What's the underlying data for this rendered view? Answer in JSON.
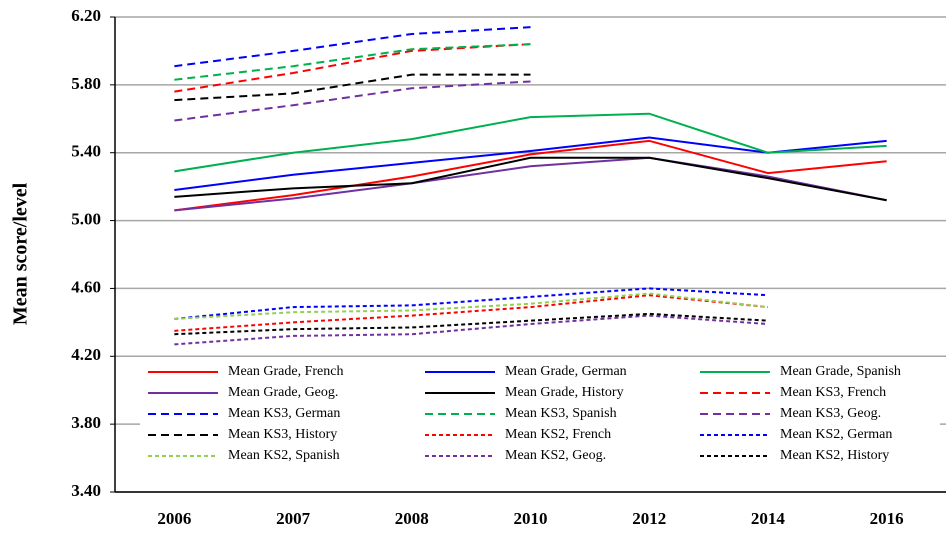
{
  "chart_data": {
    "type": "line",
    "y_label": "Mean score/level",
    "categories": [
      "2006",
      "2007",
      "2008",
      "2010",
      "2012",
      "2014",
      "2016"
    ],
    "ylim": [
      3.4,
      6.2
    ],
    "yticks": [
      {
        "value": 3.4,
        "label": "3.40"
      },
      {
        "value": 3.8,
        "label": "3.80"
      },
      {
        "value": 4.2,
        "label": "4.20"
      },
      {
        "value": 4.6,
        "label": "4.60"
      },
      {
        "value": 5.0,
        "label": "5.00"
      },
      {
        "value": 5.4,
        "label": "5.40"
      },
      {
        "value": 5.8,
        "label": "5.80"
      },
      {
        "value": 6.2,
        "label": "6.20"
      }
    ],
    "grid": true,
    "series": [
      {
        "name": "Mean Grade, French",
        "color": "#ff0000",
        "dash": "solid",
        "values": [
          5.06,
          5.15,
          5.26,
          5.39,
          5.47,
          5.28,
          5.35
        ]
      },
      {
        "name": "Mean Grade, German",
        "color": "#0000ff",
        "dash": "solid",
        "values": [
          5.18,
          5.27,
          5.34,
          5.41,
          5.49,
          5.4,
          5.47
        ]
      },
      {
        "name": "Mean Grade, Spanish",
        "color": "#00b050",
        "dash": "solid",
        "values": [
          5.29,
          5.4,
          5.48,
          5.61,
          5.63,
          5.4,
          5.44
        ]
      },
      {
        "name": "Mean Grade, Geog.",
        "color": "#7030a0",
        "dash": "solid",
        "values": [
          5.06,
          5.13,
          5.22,
          5.32,
          5.37,
          5.26,
          5.12
        ]
      },
      {
        "name": "Mean Grade, History",
        "color": "#000000",
        "dash": "solid",
        "values": [
          5.14,
          5.19,
          5.22,
          5.37,
          5.37,
          5.25,
          5.12
        ]
      },
      {
        "name": "Mean KS3, French",
        "color": "#ff0000",
        "dash": "dashed",
        "values": [
          5.76,
          5.87,
          6.0,
          6.04,
          null,
          null,
          null
        ]
      },
      {
        "name": "Mean KS3, German",
        "color": "#0000ff",
        "dash": "dashed",
        "values": [
          5.91,
          6.0,
          6.1,
          6.14,
          null,
          null,
          null
        ]
      },
      {
        "name": "Mean KS3, Spanish",
        "color": "#00b050",
        "dash": "dashed",
        "values": [
          5.83,
          5.91,
          6.01,
          6.04,
          null,
          null,
          null
        ]
      },
      {
        "name": "Mean KS3, Geog.",
        "color": "#7030a0",
        "dash": "dashed",
        "values": [
          5.59,
          5.68,
          5.78,
          5.82,
          null,
          null,
          null
        ]
      },
      {
        "name": "Mean KS3, History",
        "color": "#000000",
        "dash": "dashed",
        "values": [
          5.71,
          5.75,
          5.86,
          5.86,
          null,
          null,
          null
        ]
      },
      {
        "name": "Mean KS2, French",
        "color": "#ff0000",
        "dash": "dotted",
        "values": [
          4.35,
          4.4,
          4.44,
          4.49,
          4.56,
          4.49,
          null
        ]
      },
      {
        "name": "Mean KS2, German",
        "color": "#0000ff",
        "dash": "dotted",
        "values": [
          4.42,
          4.49,
          4.5,
          4.55,
          4.6,
          4.56,
          null
        ]
      },
      {
        "name": "Mean KS2, Spanish",
        "color": "#92d050",
        "dash": "dotted",
        "values": [
          4.42,
          4.46,
          4.47,
          4.51,
          4.57,
          4.49,
          null
        ]
      },
      {
        "name": "Mean KS2, Geog.",
        "color": "#7030a0",
        "dash": "dotted",
        "values": [
          4.27,
          4.32,
          4.33,
          4.39,
          4.44,
          4.39,
          null
        ]
      },
      {
        "name": "Mean KS2, History",
        "color": "#000000",
        "dash": "dotted",
        "values": [
          4.33,
          4.36,
          4.37,
          4.41,
          4.45,
          4.41,
          null
        ]
      }
    ]
  }
}
